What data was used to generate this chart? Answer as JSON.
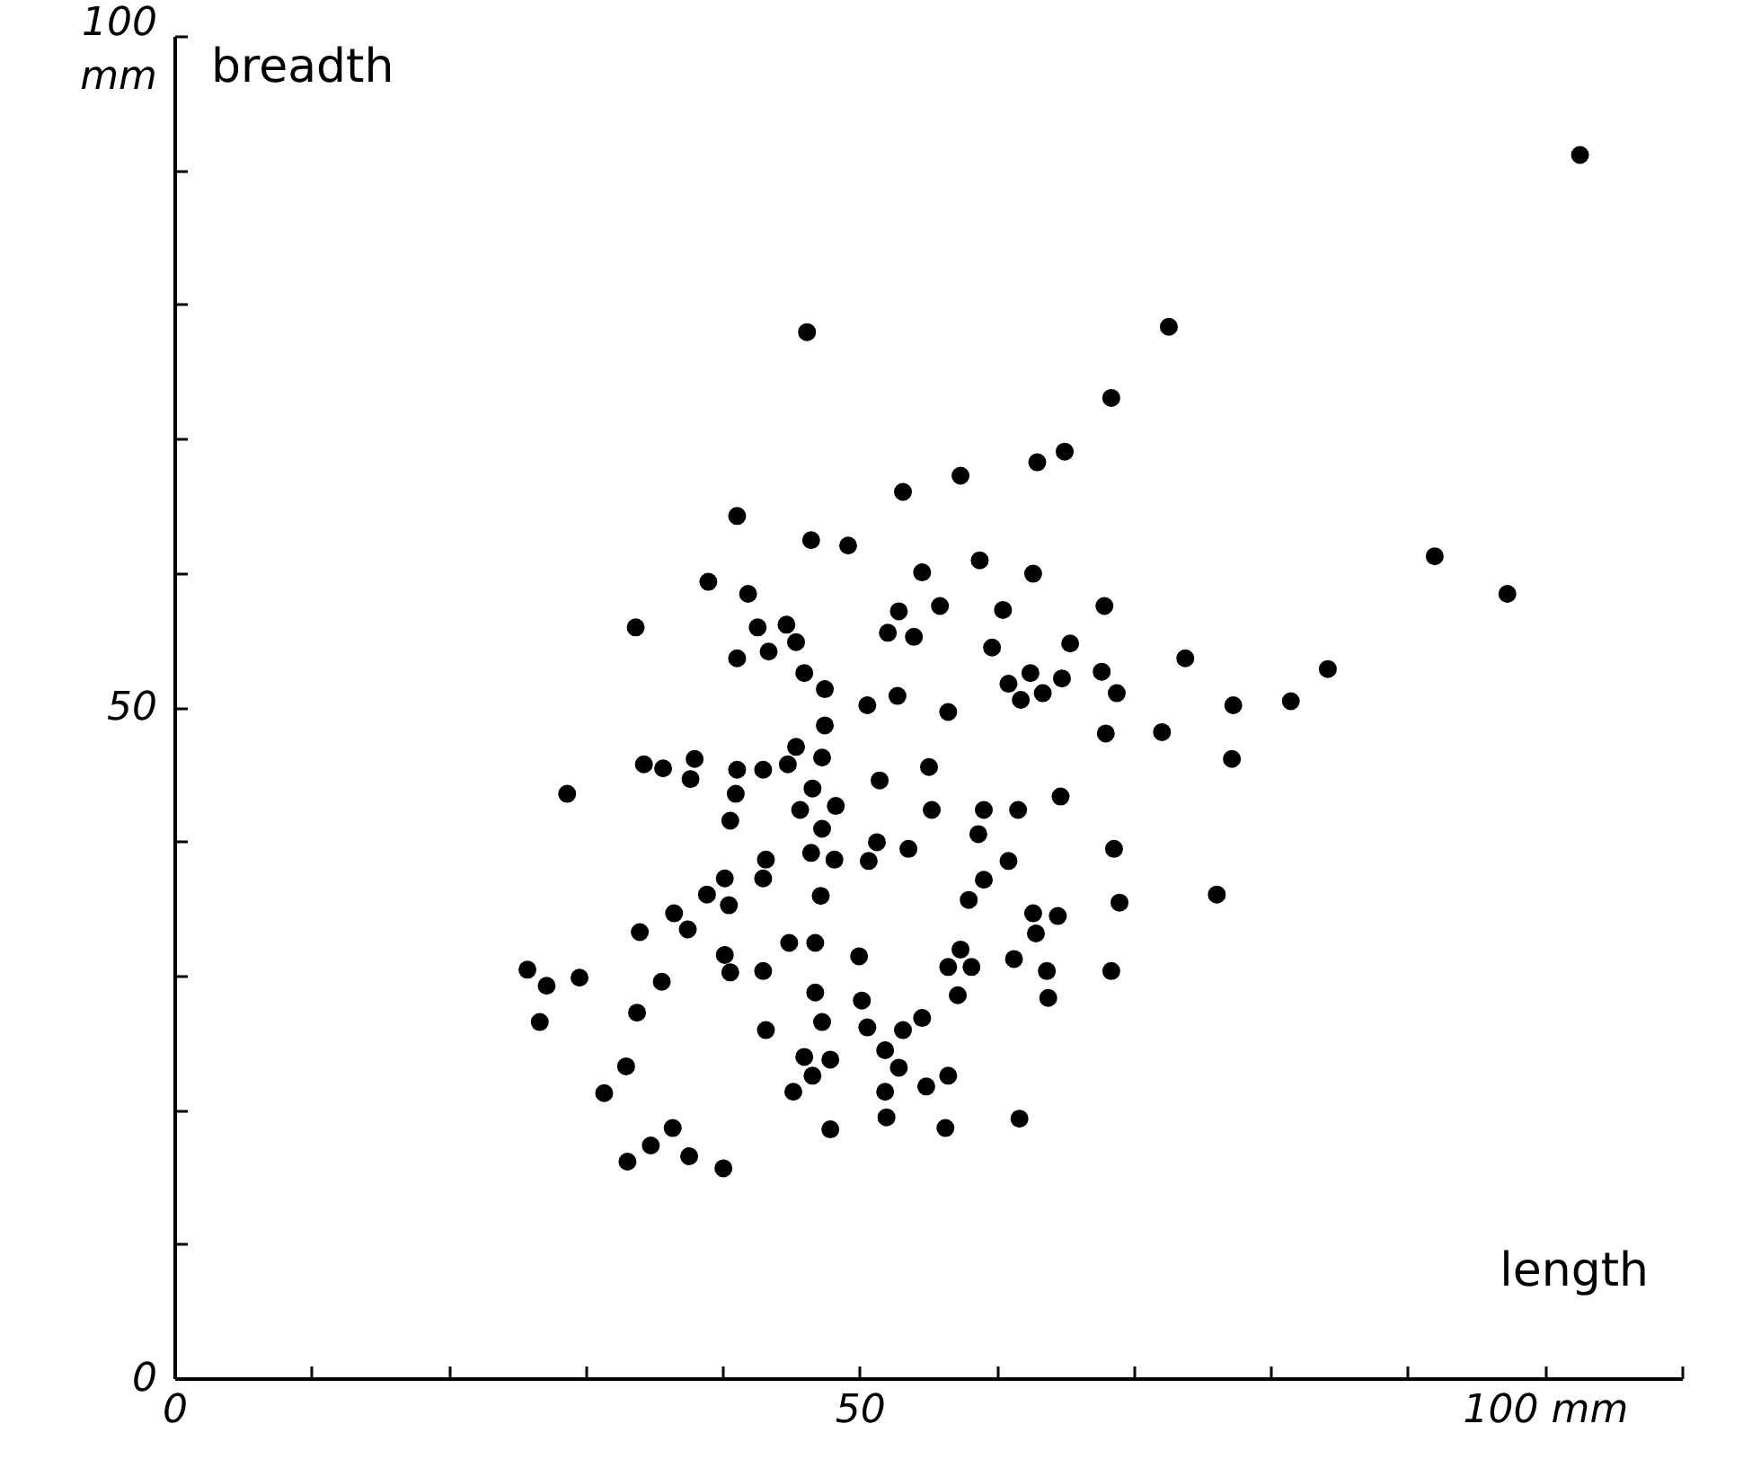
{
  "chart_data": {
    "type": "scatter",
    "xlabel": "length",
    "ylabel": "breadth",
    "marker": "circle",
    "grid": false,
    "xlim": [
      0,
      110
    ],
    "ylim": [
      0,
      100
    ],
    "xticks": [
      0,
      {
        "value": 10,
        "label": null
      },
      {
        "value": 20,
        "label": null
      },
      {
        "value": 30,
        "label": null
      },
      {
        "value": 40,
        "label": null
      },
      50,
      {
        "value": 60,
        "label": null
      },
      {
        "value": 70,
        "label": null
      },
      {
        "value": 80,
        "label": null
      },
      {
        "value": 90,
        "label": null
      },
      {
        "value": 100,
        "label": "100 mm"
      },
      {
        "value": 110,
        "label": null
      }
    ],
    "yticks": [
      0,
      {
        "value": 10,
        "label": null
      },
      {
        "value": 20,
        "label": null
      },
      {
        "value": 30,
        "label": null
      },
      {
        "value": 40,
        "label": null
      },
      50,
      {
        "value": 60,
        "label": null
      },
      {
        "value": 70,
        "label": null
      },
      {
        "value": 80,
        "label": null
      },
      {
        "value": 90,
        "label": null
      },
      {
        "value": 100,
        "label": "100 mm"
      }
    ],
    "series": [
      {
        "color": "#000000",
        "x": [
          62.9,
          64.9,
          57.3,
          53.1,
          41.0,
          46.4,
          49.1,
          38.9,
          54.5,
          58.7,
          62.6,
          41.8,
          33.6,
          42.5,
          44.6,
          45.3,
          43.3,
          41.0,
          45.9,
          47.4,
          52.8,
          52.0,
          53.9,
          55.8,
          60.4,
          59.6,
          67.8,
          65.3,
          62.4,
          60.8,
          61.7,
          63.3,
          64.7,
          67.6,
          68.7,
          67.9,
          50.5,
          52.7,
          56.4,
          47.4,
          45.3,
          47.2,
          44.7,
          42.9,
          41.0,
          37.9,
          37.6,
          35.6,
          34.2,
          28.6,
          40.9,
          40.5,
          46.5,
          51.4,
          55.0,
          45.6,
          48.2,
          47.2,
          55.2,
          59.0,
          61.5,
          64.6,
          58.6,
          51.2,
          50.6,
          53.5,
          46.4,
          48.1,
          60.8,
          43.1,
          42.9,
          40.1,
          38.8,
          40.4,
          47.1,
          59.0,
          57.9,
          68.5,
          68.9,
          36.4,
          37.4,
          33.9,
          62.6,
          64.4,
          62.8,
          44.8,
          46.7,
          49.9,
          40.1,
          40.5,
          42.9,
          57.3,
          56.4,
          58.1,
          57.1,
          61.2,
          63.6,
          63.7,
          68.3,
          25.7,
          27.1,
          29.5,
          35.5,
          26.6,
          33.7,
          46.7,
          50.1,
          47.2,
          50.5,
          43.1,
          54.5,
          53.1,
          51.8,
          32.9,
          31.3,
          45.9,
          47.8,
          46.5,
          45.1,
          52.8,
          56.4,
          51.8,
          54.8,
          36.3,
          34.7,
          33.0,
          37.5,
          40.0,
          47.8,
          51.9,
          56.2,
          61.6,
          102.5,
          46.1,
          72.5,
          68.3,
          91.9,
          97.2,
          73.7,
          84.1,
          77.2,
          81.4,
          72.0,
          77.1,
          76.0
        ],
        "values": [
          68.3,
          69.1,
          67.3,
          66.1,
          64.3,
          62.5,
          62.1,
          59.4,
          60.1,
          61.0,
          60.0,
          58.5,
          56.0,
          56.0,
          56.2,
          54.9,
          54.2,
          53.7,
          52.6,
          51.4,
          57.2,
          55.6,
          55.3,
          57.6,
          57.3,
          54.5,
          57.6,
          54.8,
          52.6,
          51.8,
          50.6,
          51.1,
          52.2,
          52.7,
          51.1,
          48.1,
          50.2,
          50.9,
          49.7,
          48.7,
          47.1,
          46.3,
          45.8,
          45.4,
          45.4,
          46.2,
          44.7,
          45.5,
          45.8,
          43.6,
          43.6,
          41.6,
          44.0,
          44.6,
          45.6,
          42.4,
          42.7,
          41.0,
          42.4,
          42.4,
          42.4,
          43.4,
          40.6,
          40.0,
          38.6,
          39.5,
          39.2,
          38.7,
          38.6,
          38.7,
          37.3,
          37.3,
          36.1,
          35.3,
          36.0,
          37.2,
          35.7,
          39.5,
          35.5,
          34.7,
          33.5,
          33.3,
          34.7,
          34.5,
          33.2,
          32.5,
          32.5,
          31.5,
          31.6,
          30.3,
          30.4,
          32.0,
          30.7,
          30.7,
          28.6,
          31.3,
          30.4,
          28.4,
          30.4,
          30.5,
          29.3,
          29.9,
          29.6,
          26.6,
          27.3,
          28.8,
          28.2,
          26.6,
          26.2,
          26.0,
          26.9,
          26.0,
          24.5,
          23.3,
          21.3,
          24.0,
          23.8,
          22.6,
          21.4,
          23.2,
          22.6,
          21.4,
          21.8,
          18.7,
          17.4,
          16.2,
          16.6,
          15.7,
          18.6,
          19.5,
          18.7,
          19.4,
          91.2,
          78.0,
          78.4,
          73.1,
          61.3,
          58.5,
          53.7,
          52.9,
          50.2,
          50.5,
          48.2,
          46.2,
          36.1
        ]
      }
    ]
  }
}
